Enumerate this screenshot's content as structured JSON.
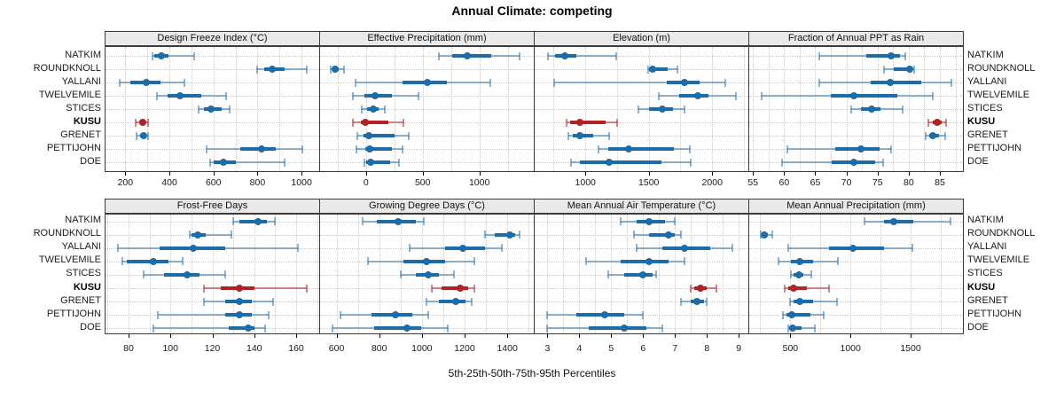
{
  "title": "Annual Climate: competing",
  "xlabel": "5th-25th-50th-75th-95th Percentiles",
  "sites": [
    "NATKIM",
    "ROUNDKNOLL",
    "YALLANI",
    "TWELVEMILE",
    "STICES",
    "KUSU",
    "GRENET",
    "PETTIJOHN",
    "DOE"
  ],
  "highlight_site": "KUSU",
  "colors": {
    "blue_main": "#1b6ca8",
    "blue_light": "rgba(27,108,168,0.5)",
    "red_main": "#b22222",
    "red_light": "rgba(178,34,34,0.55)",
    "grid": "#c9c9c9",
    "strip_bg": "#e9e9e9",
    "panel_border": "#3a3a3a"
  },
  "chart_data": [
    {
      "type": "dotplot-percentiles",
      "title": "Design Freeze Index (°C)",
      "grid_row": 0,
      "grid_col": 0,
      "xlim": [
        110,
        1080
      ],
      "ticks": [
        200,
        400,
        600,
        800,
        1000
      ],
      "minor_step": 100,
      "series": [
        {
          "site": "NATKIM",
          "percentiles": [
            324,
            332,
            362,
            397,
            514
          ]
        },
        {
          "site": "ROUNDKNOLL",
          "percentiles": [
            800,
            829,
            867,
            923,
            1022
          ]
        },
        {
          "site": "YALLANI",
          "percentiles": [
            173,
            224,
            294,
            361,
            468
          ]
        },
        {
          "site": "TWELVEMILE",
          "percentiles": [
            344,
            390,
            450,
            543,
            657
          ]
        },
        {
          "site": "STICES",
          "percentiles": [
            534,
            557,
            587,
            637,
            674
          ]
        },
        {
          "site": "KUSU",
          "percentiles": [
            248,
            262,
            280,
            292,
            304
          ]
        },
        {
          "site": "GRENET",
          "percentiles": [
            252,
            266,
            283,
            294,
            304
          ]
        },
        {
          "site": "PETTIJOHN",
          "percentiles": [
            570,
            723,
            820,
            883,
            1005
          ]
        },
        {
          "site": "DOE",
          "percentiles": [
            583,
            603,
            647,
            703,
            923
          ]
        }
      ]
    },
    {
      "type": "dotplot-percentiles",
      "title": "Effective Precipitation (mm)",
      "grid_row": 0,
      "grid_col": 1,
      "xlim": [
        -405,
        1480
      ],
      "ticks": [
        0,
        500,
        1000
      ],
      "minor_step": 250,
      "series": [
        {
          "site": "NATKIM",
          "percentiles": [
            644,
            763,
            893,
            1101,
            1356
          ]
        },
        {
          "site": "ROUNDKNOLL",
          "percentiles": [
            -312,
            -295,
            -275,
            -240,
            -197
          ]
        },
        {
          "site": "YALLANI",
          "percentiles": [
            -91,
            322,
            538,
            712,
            1096
          ]
        },
        {
          "site": "TWELVEMILE",
          "percentiles": [
            -114,
            -16,
            78,
            231,
            465
          ]
        },
        {
          "site": "STICES",
          "percentiles": [
            -34,
            10,
            65,
            114,
            169
          ]
        },
        {
          "site": "KUSU",
          "percentiles": [
            -119,
            -45,
            -10,
            200,
            330
          ]
        },
        {
          "site": "GRENET",
          "percentiles": [
            -78,
            -20,
            23,
            250,
            374
          ]
        },
        {
          "site": "PETTIJOHN",
          "percentiles": [
            -86,
            -10,
            31,
            230,
            325
          ]
        },
        {
          "site": "DOE",
          "percentiles": [
            -13,
            5,
            42,
            215,
            291
          ]
        }
      ]
    },
    {
      "type": "dotplot-percentiles",
      "title": "Elevation (m)",
      "grid_row": 0,
      "grid_col": 2,
      "xlim": [
        600,
        2285
      ],
      "ticks": [
        1000,
        1500,
        2000
      ],
      "minor_step": 250,
      "series": [
        {
          "site": "NATKIM",
          "percentiles": [
            707,
            760,
            837,
            930,
            1242
          ]
        },
        {
          "site": "ROUNDKNOLL",
          "percentiles": [
            1493,
            1505,
            1528,
            1649,
            1723
          ]
        },
        {
          "site": "YALLANI",
          "percentiles": [
            753,
            1644,
            1782,
            1900,
            2105
          ]
        },
        {
          "site": "TWELVEMILE",
          "percentiles": [
            1577,
            1737,
            1884,
            1970,
            2189
          ]
        },
        {
          "site": "STICES",
          "percentiles": [
            1419,
            1505,
            1609,
            1691,
            1784
          ]
        },
        {
          "site": "KUSU",
          "percentiles": [
            849,
            877,
            960,
            1156,
            1249
          ]
        },
        {
          "site": "GRENET",
          "percentiles": [
            865,
            900,
            958,
            1063,
            1188
          ]
        },
        {
          "site": "PETTIJOHN",
          "percentiles": [
            1105,
            1180,
            1342,
            1700,
            1826
          ]
        },
        {
          "site": "DOE",
          "percentiles": [
            886,
            960,
            1188,
            1600,
            1830
          ]
        }
      ]
    },
    {
      "type": "dotplot-percentiles",
      "title": "Fraction of Annual PPT as Rain",
      "grid_row": 0,
      "grid_col": 3,
      "xlim": [
        54.4,
        88.7
      ],
      "ticks": [
        55,
        60,
        65,
        70,
        75,
        80,
        85
      ],
      "minor_step": 2.5,
      "series": [
        {
          "site": "NATKIM",
          "percentiles": [
            65.7,
            73.2,
            77.2,
            78.6,
            79.5
          ]
        },
        {
          "site": "ROUNDKNOLL",
          "percentiles": [
            76.1,
            77.6,
            80.2,
            80.5,
            80.9
          ]
        },
        {
          "site": "YALLANI",
          "percentiles": [
            65.7,
            73.9,
            77.1,
            82.0,
            86.8
          ]
        },
        {
          "site": "TWELVEMILE",
          "percentiles": [
            56.4,
            67.5,
            71.2,
            78.2,
            83.9
          ]
        },
        {
          "site": "STICES",
          "percentiles": [
            70.8,
            72.4,
            74.1,
            75.5,
            79.0
          ]
        },
        {
          "site": "KUSU",
          "percentiles": [
            83.2,
            83.8,
            84.6,
            85.3,
            86.0
          ]
        },
        {
          "site": "GRENET",
          "percentiles": [
            82.7,
            83.3,
            83.9,
            84.9,
            85.8
          ]
        },
        {
          "site": "PETTIJOHN",
          "percentiles": [
            60.5,
            68.2,
            72.3,
            75.3,
            77.2
          ]
        },
        {
          "site": "DOE",
          "percentiles": [
            59.7,
            67.7,
            71.2,
            74.6,
            75.9
          ]
        }
      ]
    },
    {
      "type": "dotplot-percentiles",
      "title": "Frost-Free Days",
      "grid_row": 1,
      "grid_col": 0,
      "xlim": [
        69,
        171
      ],
      "ticks": [
        80,
        100,
        120,
        140,
        160
      ],
      "minor_step": 10,
      "series": [
        {
          "site": "NATKIM",
          "percentiles": [
            130,
            133,
            142,
            146,
            150
          ]
        },
        {
          "site": "ROUNDKNOLL",
          "percentiles": [
            109,
            110,
            113,
            117,
            129
          ]
        },
        {
          "site": "YALLANI",
          "percentiles": [
            75,
            95,
            111,
            126,
            161
          ]
        },
        {
          "site": "TWELVEMILE",
          "percentiles": [
            77,
            79,
            92,
            99,
            106
          ]
        },
        {
          "site": "STICES",
          "percentiles": [
            87,
            97,
            108,
            114,
            126
          ]
        },
        {
          "site": "KUSU",
          "percentiles": [
            116,
            124,
            133,
            140,
            165
          ]
        },
        {
          "site": "GRENET",
          "percentiles": [
            116,
            126,
            133,
            139,
            149
          ]
        },
        {
          "site": "PETTIJOHN",
          "percentiles": [
            94,
            126,
            133,
            139,
            147
          ]
        },
        {
          "site": "DOE",
          "percentiles": [
            92,
            128,
            137,
            140,
            145
          ]
        }
      ]
    },
    {
      "type": "dotplot-percentiles",
      "title": "Growing Degree Days (°C)",
      "grid_row": 1,
      "grid_col": 1,
      "xlim": [
        523,
        1524
      ],
      "ticks": [
        600,
        800,
        1000,
        1200,
        1400
      ],
      "minor_step": 100,
      "series": [
        {
          "site": "NATKIM",
          "percentiles": [
            721,
            790,
            887,
            970,
            1011
          ]
        },
        {
          "site": "ROUNDKNOLL",
          "percentiles": [
            1294,
            1342,
            1410,
            1438,
            1459
          ]
        },
        {
          "site": "YALLANI",
          "percentiles": [
            942,
            1107,
            1193,
            1294,
            1376
          ]
        },
        {
          "site": "TWELVEMILE",
          "percentiles": [
            746,
            914,
            1022,
            1107,
            1245
          ]
        },
        {
          "site": "STICES",
          "percentiles": [
            903,
            970,
            1028,
            1080,
            1149
          ]
        },
        {
          "site": "KUSU",
          "percentiles": [
            1045,
            1094,
            1179,
            1218,
            1245
          ]
        },
        {
          "site": "GRENET",
          "percentiles": [
            1022,
            1080,
            1160,
            1204,
            1232
          ]
        },
        {
          "site": "PETTIJOHN",
          "percentiles": [
            618,
            763,
            876,
            956,
            1028
          ]
        },
        {
          "site": "DOE",
          "percentiles": [
            581,
            777,
            928,
            997,
            1121
          ]
        }
      ]
    },
    {
      "type": "dotplot-percentiles",
      "title": "Mean Annual Air Temperature (°C)",
      "grid_row": 1,
      "grid_col": 2,
      "xlim": [
        2.6,
        9.3
      ],
      "ticks": [
        3,
        4,
        5,
        6,
        7,
        8,
        9
      ],
      "minor_step": 0.5,
      "series": [
        {
          "site": "NATKIM",
          "percentiles": [
            5.3,
            5.8,
            6.2,
            6.7,
            7.0
          ]
        },
        {
          "site": "ROUNDKNOLL",
          "percentiles": [
            5.7,
            6.2,
            6.8,
            7.0,
            7.2
          ]
        },
        {
          "site": "YALLANI",
          "percentiles": [
            5.8,
            6.6,
            7.3,
            8.1,
            8.8
          ]
        },
        {
          "site": "TWELVEMILE",
          "percentiles": [
            4.2,
            5.3,
            6.2,
            6.8,
            7.3
          ]
        },
        {
          "site": "STICES",
          "percentiles": [
            4.9,
            5.4,
            6.0,
            6.3,
            6.4
          ]
        },
        {
          "site": "KUSU",
          "percentiles": [
            7.5,
            7.6,
            7.8,
            8.0,
            8.3
          ]
        },
        {
          "site": "GRENET",
          "percentiles": [
            7.2,
            7.5,
            7.7,
            7.9,
            8.0
          ]
        },
        {
          "site": "PETTIJOHN",
          "percentiles": [
            3.0,
            3.9,
            4.8,
            5.4,
            6.0
          ]
        },
        {
          "site": "DOE",
          "percentiles": [
            3.0,
            4.3,
            5.4,
            6.1,
            6.6
          ]
        }
      ]
    },
    {
      "type": "dotplot-percentiles",
      "title": "Mean Annual Precipitation (mm)",
      "grid_row": 1,
      "grid_col": 3,
      "xlim": [
        158,
        1935
      ],
      "ticks": [
        500,
        1000,
        1500
      ],
      "minor_step": 250,
      "series": [
        {
          "site": "NATKIM",
          "percentiles": [
            1119,
            1280,
            1358,
            1520,
            1832
          ]
        },
        {
          "site": "ROUNDKNOLL",
          "percentiles": [
            252,
            262,
            284,
            310,
            350
          ]
        },
        {
          "site": "YALLANI",
          "percentiles": [
            480,
            824,
            1021,
            1279,
            1512
          ]
        },
        {
          "site": "TWELVEMILE",
          "percentiles": [
            402,
            505,
            579,
            689,
            898
          ]
        },
        {
          "site": "STICES",
          "percentiles": [
            505,
            530,
            574,
            610,
            672
          ]
        },
        {
          "site": "KUSU",
          "percentiles": [
            451,
            480,
            525,
            640,
            824
          ]
        },
        {
          "site": "GRENET",
          "percentiles": [
            500,
            529,
            579,
            689,
            886
          ]
        },
        {
          "site": "PETTIJOHN",
          "percentiles": [
            436,
            468,
            510,
            665,
            780
          ]
        },
        {
          "site": "DOE",
          "percentiles": [
            480,
            493,
            517,
            591,
            701
          ]
        }
      ]
    }
  ]
}
